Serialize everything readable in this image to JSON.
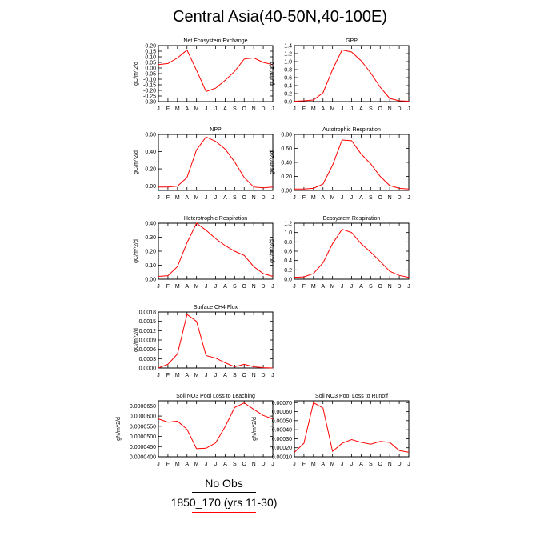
{
  "title": "Central Asia(40-50N,40-100E)",
  "legend": {
    "obs_label": "No Obs",
    "obs_color": "#000000",
    "model_label": "1850_170 (yrs 11-30)",
    "model_color": "#ff0000"
  },
  "chart_data": [
    {
      "type": "line",
      "title": "Net Ecosystem Exchange",
      "ylabel": "gC/m^2/d",
      "categories": [
        "J",
        "F",
        "M",
        "A",
        "M",
        "J",
        "J",
        "A",
        "S",
        "O",
        "N",
        "D",
        "J"
      ],
      "yticks": [
        "0.20",
        "0.15",
        "0.10",
        "0.05",
        "0.00",
        "-0.05",
        "-0.10",
        "-0.15",
        "-0.20",
        "-0.25",
        "-0.30"
      ],
      "ylim": [
        -0.3,
        0.2
      ],
      "series": [
        {
          "values": [
            0.03,
            0.04,
            0.09,
            0.16,
            -0.02,
            -0.21,
            -0.18,
            -0.11,
            -0.03,
            0.08,
            0.09,
            0.05,
            0.03
          ]
        }
      ]
    },
    {
      "type": "line",
      "title": "GPP",
      "ylabel": "gC/m^2/d",
      "categories": [
        "J",
        "F",
        "M",
        "A",
        "M",
        "J",
        "J",
        "A",
        "S",
        "O",
        "N",
        "D",
        "J"
      ],
      "yticks": [
        "1.4",
        "1.2",
        "1.0",
        "0.8",
        "0.6",
        "0.4",
        "0.2",
        "0.0"
      ],
      "ylim": [
        0,
        1.4
      ],
      "series": [
        {
          "values": [
            0.01,
            0.02,
            0.04,
            0.22,
            0.8,
            1.29,
            1.24,
            1.02,
            0.72,
            0.36,
            0.08,
            0.02,
            0.01
          ]
        }
      ]
    },
    {
      "type": "line",
      "title": "NPP",
      "ylabel": "gC/m^2/d",
      "categories": [
        "J",
        "F",
        "M",
        "A",
        "M",
        "J",
        "J",
        "A",
        "S",
        "O",
        "N",
        "D",
        "J"
      ],
      "yticks": [
        "0.60",
        "0.40",
        "0.20",
        "0.00"
      ],
      "ylim": [
        -0.05,
        0.6
      ],
      "series": [
        {
          "values": [
            -0.01,
            -0.01,
            0.0,
            0.1,
            0.42,
            0.57,
            0.52,
            0.43,
            0.28,
            0.1,
            -0.01,
            -0.02,
            -0.01
          ]
        }
      ]
    },
    {
      "type": "line",
      "title": "Autotrophic Respiration",
      "ylabel": "gC/m^2/d",
      "categories": [
        "J",
        "F",
        "M",
        "A",
        "M",
        "J",
        "J",
        "A",
        "S",
        "O",
        "N",
        "D",
        "J"
      ],
      "yticks": [
        "0.80",
        "0.60",
        "0.40",
        "0.20",
        "0.00"
      ],
      "ylim": [
        0,
        0.8
      ],
      "series": [
        {
          "values": [
            0.02,
            0.02,
            0.03,
            0.09,
            0.36,
            0.72,
            0.71,
            0.52,
            0.38,
            0.2,
            0.07,
            0.03,
            0.02
          ]
        }
      ]
    },
    {
      "type": "line",
      "title": "Heterotrophic Respiration",
      "ylabel": "gC/m^2/d",
      "categories": [
        "J",
        "F",
        "M",
        "A",
        "M",
        "J",
        "J",
        "A",
        "S",
        "O",
        "N",
        "D",
        "J"
      ],
      "yticks": [
        "0.40",
        "0.30",
        "0.20",
        "0.10",
        "0.00"
      ],
      "ylim": [
        0,
        0.4
      ],
      "series": [
        {
          "values": [
            0.02,
            0.025,
            0.09,
            0.26,
            0.4,
            0.35,
            0.29,
            0.24,
            0.2,
            0.17,
            0.09,
            0.04,
            0.02
          ]
        }
      ]
    },
    {
      "type": "line",
      "title": "Ecosystem Respiration",
      "ylabel": "gC/m^2/d",
      "categories": [
        "J",
        "F",
        "M",
        "A",
        "M",
        "J",
        "J",
        "A",
        "S",
        "O",
        "N",
        "D",
        "J"
      ],
      "yticks": [
        "1.2",
        "1.0",
        "0.8",
        "0.6",
        "0.4",
        "0.2",
        "0.0"
      ],
      "ylim": [
        0,
        1.2
      ],
      "series": [
        {
          "values": [
            0.04,
            0.05,
            0.12,
            0.35,
            0.76,
            1.07,
            1.0,
            0.76,
            0.58,
            0.38,
            0.17,
            0.08,
            0.04
          ]
        }
      ]
    },
    {
      "type": "line",
      "title": "Surface CH4 Flux",
      "ylabel": "gC/m^2/d",
      "categories": [
        "J",
        "F",
        "M",
        "A",
        "M",
        "J",
        "J",
        "A",
        "S",
        "O",
        "N",
        "D",
        "J"
      ],
      "yticks": [
        "0.0018",
        "0.0015",
        "0.0012",
        "0.0009",
        "0.0006",
        "0.0003",
        "0.0000"
      ],
      "ylim": [
        0,
        0.0018
      ],
      "series": [
        {
          "values": [
            0.0,
            0.00012,
            0.00045,
            0.00172,
            0.0015,
            0.0004,
            0.00032,
            0.00017,
            4e-05,
            0.00012,
            4e-05,
            1e-05,
            0.0
          ]
        }
      ]
    },
    {
      "type": "line",
      "title": "Soil NO3 Pool Loss to Leaching",
      "ylabel": "gN/m^2/d",
      "categories": [
        "J",
        "F",
        "M",
        "A",
        "M",
        "J",
        "J",
        "A",
        "S",
        "O",
        "N",
        "D",
        "J"
      ],
      "yticks": [
        "0.0000650",
        "0.0000600",
        "0.0000550",
        "0.0000500",
        "0.0000450",
        "0.0000400"
      ],
      "ylim": [
        4e-05,
        6.75e-05
      ],
      "series": [
        {
          "values": [
            5.86e-05,
            5.7e-05,
            5.75e-05,
            5.35e-05,
            4.4e-05,
            4.42e-05,
            4.68e-05,
            5.48e-05,
            6.42e-05,
            6.65e-05,
            6.33e-05,
            6.03e-05,
            5.86e-05
          ]
        }
      ]
    },
    {
      "type": "line",
      "title": "Soil NO3 Pool Loss to Runoff",
      "ylabel": "gN/m^2/d",
      "categories": [
        "J",
        "F",
        "M",
        "A",
        "M",
        "J",
        "J",
        "A",
        "S",
        "O",
        "N",
        "D",
        "J"
      ],
      "yticks": [
        "0.00070",
        "0.00060",
        "0.00050",
        "0.00040",
        "0.00030",
        "0.00020",
        "0.00010"
      ],
      "ylim": [
        0.0001,
        0.00072
      ],
      "series": [
        {
          "values": [
            0.00015,
            0.00025,
            0.0007,
            0.00064,
            0.00016,
            0.00025,
            0.00029,
            0.00026,
            0.00024,
            0.00027,
            0.00026,
            0.00017,
            0.00015
          ]
        }
      ]
    }
  ]
}
